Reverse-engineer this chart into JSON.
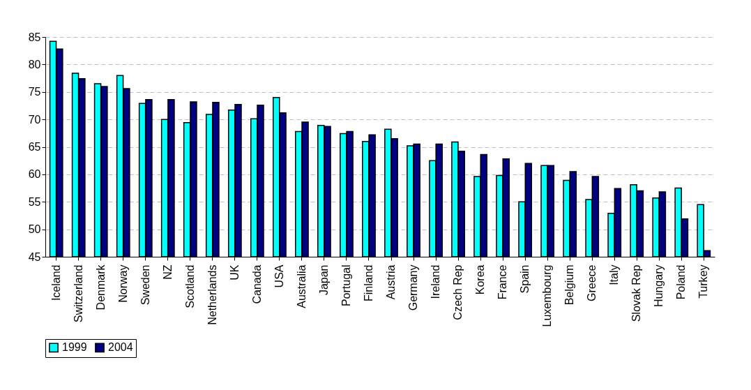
{
  "chart_data": {
    "type": "bar",
    "categories": [
      "Iceland",
      "Switzerland",
      "Denmark",
      "Norway",
      "Sweden",
      "NZ",
      "Scotland",
      "Netherlands",
      "UK",
      "Canada",
      "USA",
      "Australia",
      "Japan",
      "Portugal",
      "Finland",
      "Austria",
      "Germany",
      "Ireland",
      "Czech Rep",
      "Korea",
      "France",
      "Spain",
      "Luxembourg",
      "Belgium",
      "Greece",
      "Italy",
      "Slovak Rep",
      "Hungary",
      "Poland",
      "Turkey"
    ],
    "series": [
      {
        "name": "1999",
        "color": "#00ffff",
        "values": [
          84.2,
          78.4,
          76.5,
          78.0,
          72.9,
          70.0,
          69.4,
          70.9,
          71.7,
          70.1,
          74.0,
          67.8,
          68.9,
          67.4,
          66.0,
          68.2,
          65.2,
          62.5,
          65.9,
          59.6,
          59.8,
          55.0,
          61.6,
          58.9,
          55.4,
          52.9,
          58.1,
          55.7,
          57.5,
          54.5
        ]
      },
      {
        "name": "2004",
        "color": "#000080",
        "values": [
          82.8,
          77.4,
          76.0,
          75.6,
          73.6,
          73.6,
          73.2,
          73.1,
          72.7,
          72.6,
          71.2,
          69.5,
          68.7,
          67.8,
          67.2,
          66.5,
          65.5,
          65.5,
          64.2,
          63.6,
          62.8,
          62.0,
          61.6,
          60.5,
          59.6,
          57.4,
          57.0,
          56.8,
          51.9,
          46.1
        ]
      }
    ],
    "ylim": [
      45,
      85
    ],
    "yticks": [
      45,
      50,
      55,
      60,
      65,
      70,
      75,
      80,
      85
    ],
    "grid": "y",
    "legend": "bottom"
  }
}
